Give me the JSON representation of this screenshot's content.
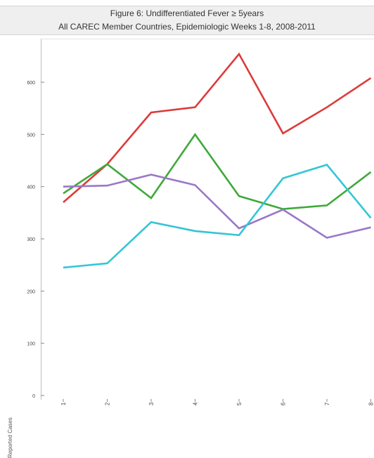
{
  "title_line1": "Figure 6: Undifferentiated Fever  ≥ 5years",
  "title_line2": "All CAREC Member Countries, Epidemiologic Weeks 1-8, 2008-2011",
  "chart_data": {
    "type": "line",
    "title": "Figure 6: Undifferentiated Fever  ≥ 5years",
    "subtitle": "All CAREC Member Countries, Epidemiologic Weeks 1-8, 2008-2011",
    "xlabel": "",
    "ylabel": "Reported Cases",
    "x": [
      "1",
      "2",
      "3",
      "4",
      "5",
      "6",
      "7",
      "8"
    ],
    "ylim": [
      0,
      700
    ],
    "yticks": [
      0,
      100,
      200,
      300,
      400,
      500,
      600
    ],
    "grid": false,
    "legend": "none",
    "series": [
      {
        "color": "#dd3b3b",
        "values": [
          370,
          443,
          542,
          552,
          654,
          502,
          552,
          608
        ]
      },
      {
        "color": "#3fa83a",
        "values": [
          387,
          443,
          378,
          500,
          382,
          357,
          364,
          428
        ]
      },
      {
        "color": "#9b77c9",
        "values": [
          400,
          402,
          423,
          403,
          320,
          356,
          302,
          322
        ]
      },
      {
        "color": "#33c6d4",
        "values": [
          245,
          253,
          332,
          315,
          307,
          416,
          442,
          340
        ]
      }
    ]
  }
}
